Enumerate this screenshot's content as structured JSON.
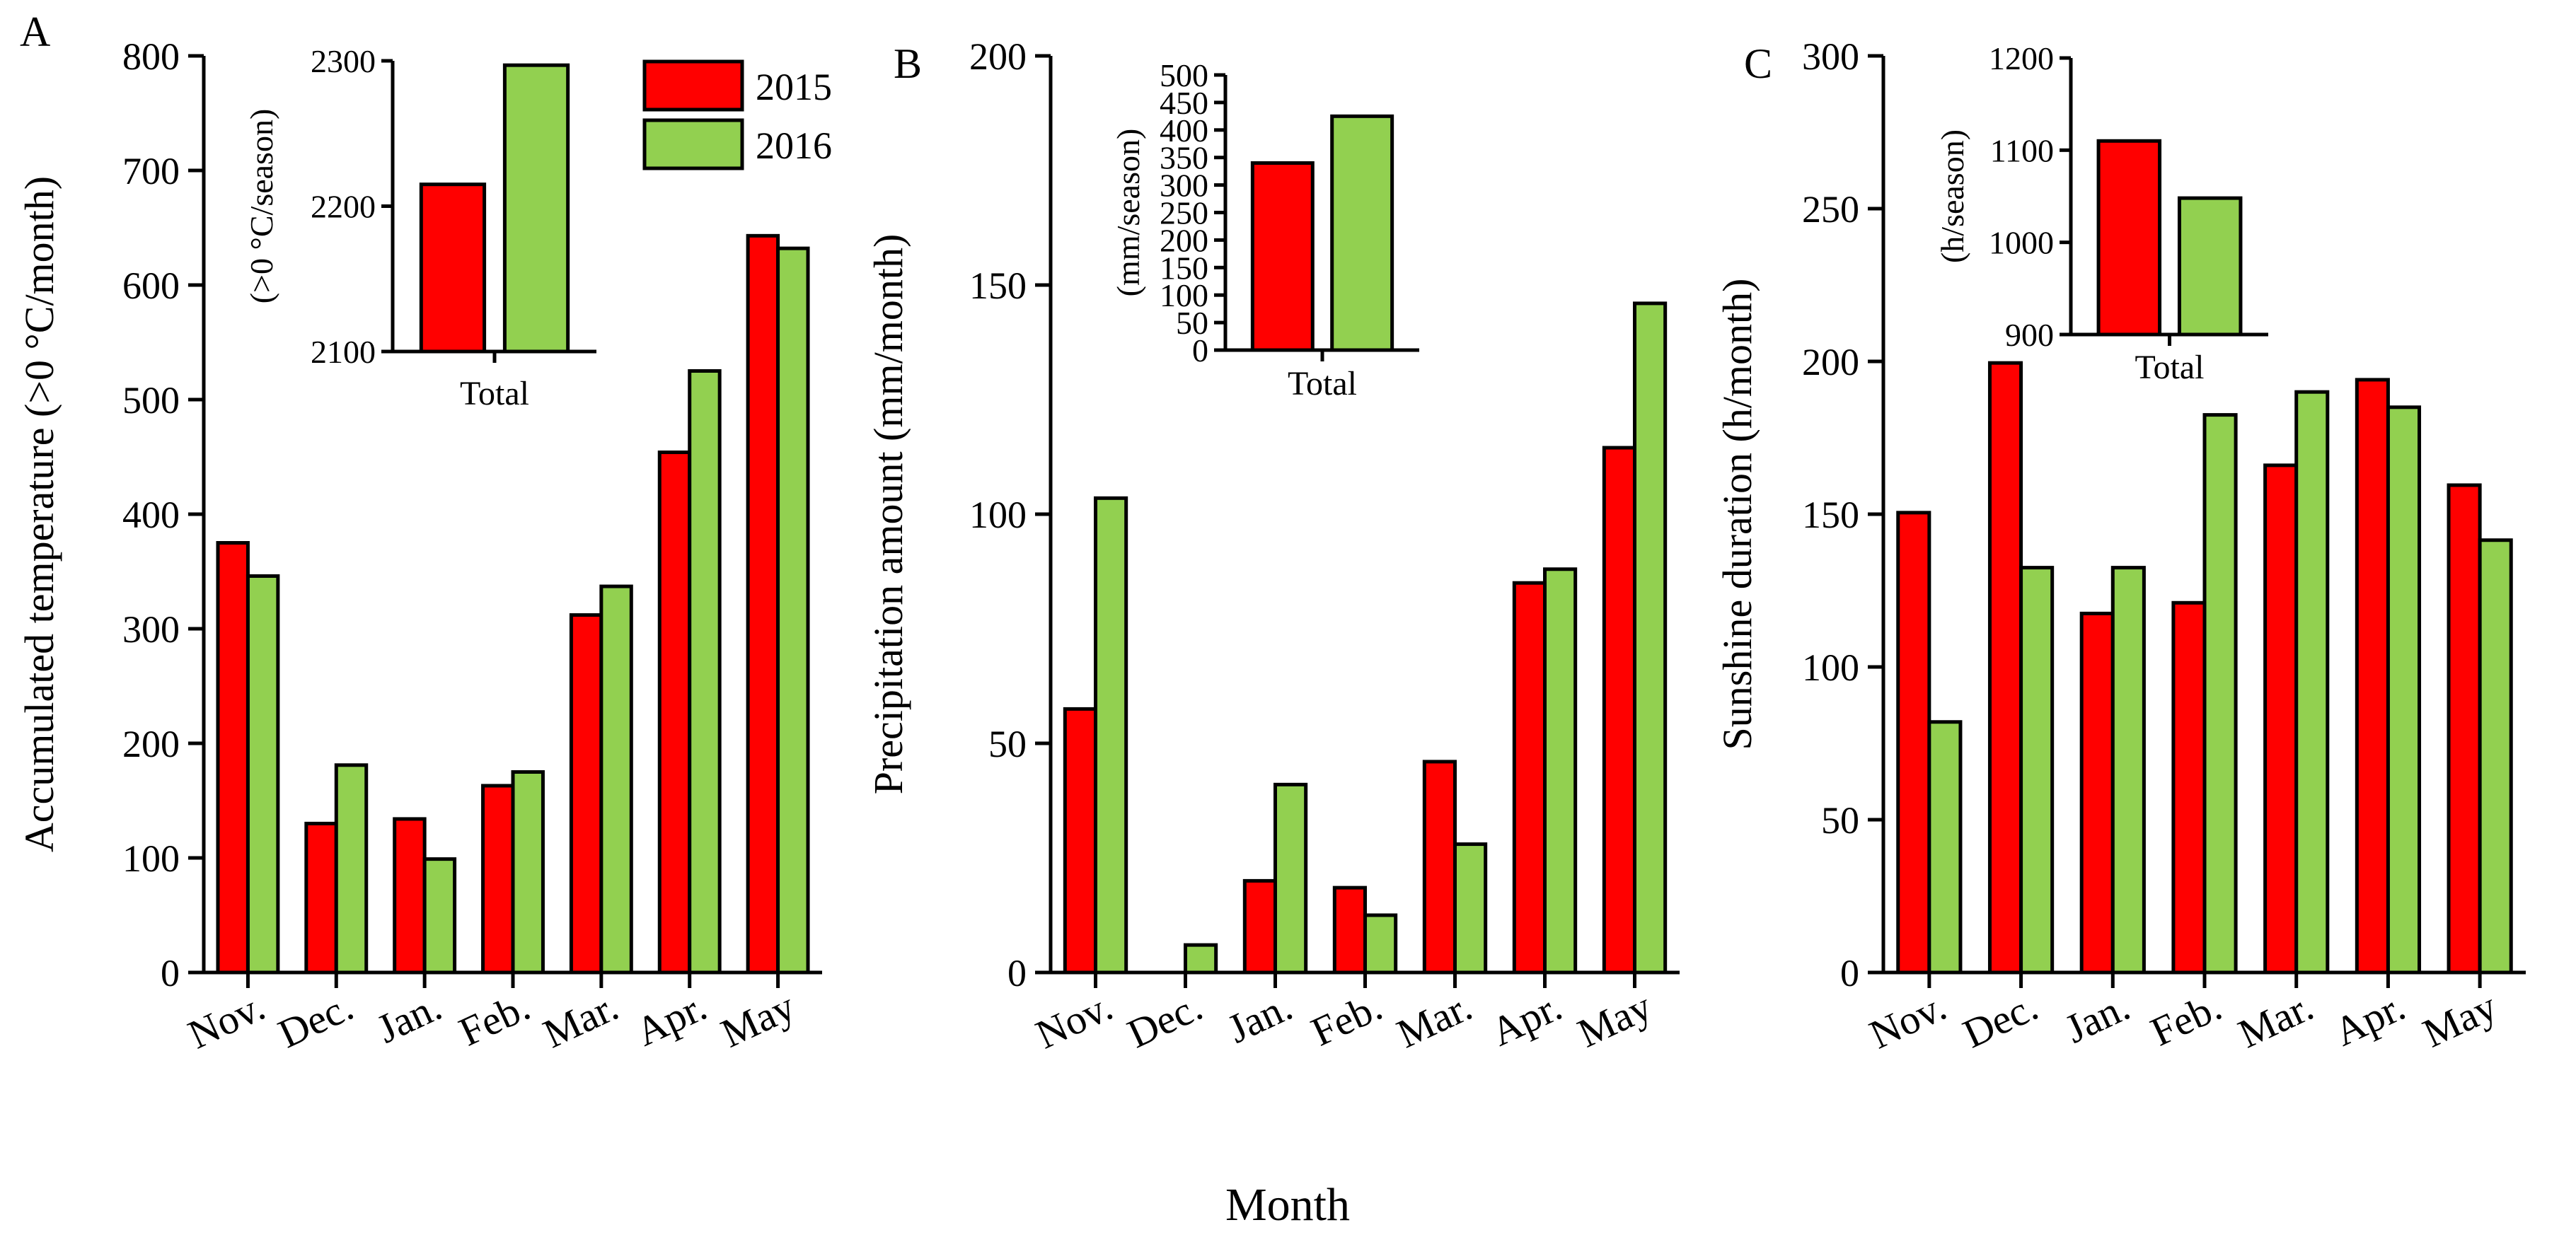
{
  "chart_data": [
    {
      "panel": "A",
      "type": "bar",
      "ylabel": "Accumulated temperature (>0 °C/month)",
      "categories": [
        "Nov.",
        "Dec.",
        "Jan.",
        "Feb.",
        "Mar.",
        "Apr.",
        "May"
      ],
      "ylim": [
        0,
        800
      ],
      "yticks": [
        0,
        100,
        200,
        300,
        400,
        500,
        600,
        700,
        800
      ],
      "series": [
        {
          "name": "2015",
          "color": "#ff0000",
          "values": [
            375,
            130,
            134,
            163,
            312,
            454,
            643
          ]
        },
        {
          "name": "2016",
          "color": "#92d050",
          "values": [
            346,
            181,
            99,
            175,
            337,
            525,
            632
          ]
        }
      ],
      "inset": {
        "ylabel": "(>0 °C/season)",
        "category": "Total",
        "ylim": [
          2100,
          2300
        ],
        "yticks": [
          2100,
          2200,
          2300
        ],
        "values": [
          2215,
          2297
        ]
      }
    },
    {
      "panel": "B",
      "type": "bar",
      "ylabel": "Precipitation amount (mm/month)",
      "categories": [
        "Nov.",
        "Dec.",
        "Jan.",
        "Feb.",
        "Mar.",
        "Apr.",
        "May"
      ],
      "ylim": [
        0,
        200
      ],
      "yticks": [
        0,
        50,
        100,
        150,
        200
      ],
      "series": [
        {
          "name": "2015",
          "color": "#ff0000",
          "values": [
            57.5,
            0,
            20,
            18.5,
            46,
            85,
            114.5
          ]
        },
        {
          "name": "2016",
          "color": "#92d050",
          "values": [
            103.5,
            6,
            41,
            12.5,
            28,
            88,
            146
          ]
        }
      ],
      "inset": {
        "ylabel": "(mm/season)",
        "category": "Total",
        "ylim": [
          0,
          500
        ],
        "yticks": [
          0,
          50,
          100,
          150,
          200,
          250,
          300,
          350,
          400,
          450,
          500
        ],
        "values": [
          340,
          425
        ]
      }
    },
    {
      "panel": "C",
      "type": "bar",
      "ylabel": "Sunshine duration (h/month)",
      "categories": [
        "Nov.",
        "Dec.",
        "Jan.",
        "Feb.",
        "Mar.",
        "Apr.",
        "May"
      ],
      "ylim": [
        0,
        300
      ],
      "yticks": [
        0,
        50,
        100,
        150,
        200,
        250,
        300
      ],
      "series": [
        {
          "name": "2015",
          "color": "#ff0000",
          "values": [
            150.5,
            199.5,
            117.5,
            121,
            166,
            194,
            159.5
          ]
        },
        {
          "name": "2016",
          "color": "#92d050",
          "values": [
            82,
            132.5,
            132.5,
            182.5,
            190,
            185,
            141.5
          ]
        }
      ],
      "inset": {
        "ylabel": "(h/season)",
        "category": "Total",
        "ylim": [
          900,
          1200
        ],
        "yticks": [
          900,
          1000,
          1100,
          1200
        ],
        "values": [
          1110,
          1048
        ]
      }
    }
  ],
  "legend": [
    {
      "label": "2015",
      "color": "#ff0000"
    },
    {
      "label": "2016",
      "color": "#92d050"
    }
  ],
  "xlabel": "Month"
}
